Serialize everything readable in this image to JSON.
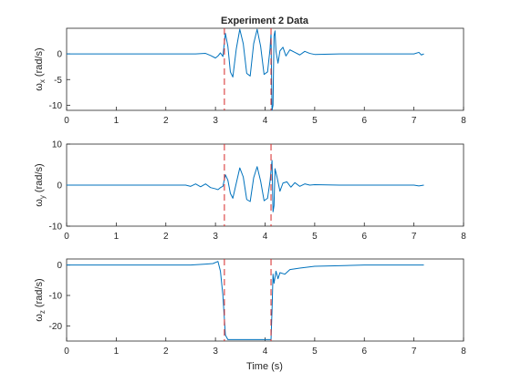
{
  "chart_data": [
    {
      "type": "line",
      "title": "Experiment 2 Data",
      "ylabel": "ω",
      "ylabel_sub": "x",
      "ylabel_unit": "(rad/s)",
      "xlim": [
        0,
        8
      ],
      "ylim": [
        -11,
        5
      ],
      "xticks": [
        0,
        1,
        2,
        3,
        4,
        5,
        6,
        7,
        8
      ],
      "yticks": [
        -10,
        -5,
        0
      ],
      "series": [
        {
          "color": "#0072bd",
          "x": [
            0,
            2.6,
            2.8,
            2.9,
            3.0,
            3.05,
            3.1,
            3.15,
            3.2,
            3.25,
            3.3,
            3.35,
            3.42,
            3.49,
            3.56,
            3.63,
            3.7,
            3.77,
            3.84,
            3.91,
            3.98,
            4.05,
            4.1,
            4.12,
            4.14,
            4.16,
            4.18,
            4.2,
            4.22,
            4.26,
            4.3,
            4.36,
            4.42,
            4.5,
            4.6,
            4.7,
            4.8,
            4.9,
            5.0,
            5.5,
            6.0,
            6.5,
            7.0,
            7.1,
            7.15,
            7.2
          ],
          "y": [
            0,
            0,
            0.1,
            -0.3,
            -0.8,
            -0.4,
            0.2,
            -0.5,
            4.0,
            1.5,
            -3.5,
            -4.5,
            1.0,
            4.8,
            2.0,
            -3.8,
            -4.3,
            2.0,
            4.8,
            1.5,
            -4.0,
            -3.5,
            1.0,
            4.0,
            -11.0,
            -10.0,
            3.5,
            4.5,
            0.5,
            -1.8,
            0.6,
            1.3,
            -0.4,
            0.8,
            0.3,
            -0.2,
            0.5,
            0.1,
            -0.1,
            0,
            0,
            0,
            0,
            0.3,
            -0.2,
            0
          ]
        }
      ],
      "vlines": [
        {
          "x": 3.18,
          "color": "#d62728"
        },
        {
          "x": 4.12,
          "color": "#d62728"
        }
      ]
    },
    {
      "type": "line",
      "ylabel": "ω",
      "ylabel_sub": "y",
      "ylabel_unit": "(rad/s)",
      "xlim": [
        0,
        8
      ],
      "ylim": [
        -10,
        10
      ],
      "xticks": [
        0,
        1,
        2,
        3,
        4,
        5,
        6,
        7,
        8
      ],
      "yticks": [
        -10,
        0,
        10
      ],
      "series": [
        {
          "color": "#0072bd",
          "x": [
            0,
            2.4,
            2.5,
            2.6,
            2.7,
            2.8,
            2.9,
            3.0,
            3.05,
            3.1,
            3.15,
            3.2,
            3.25,
            3.3,
            3.35,
            3.42,
            3.49,
            3.56,
            3.63,
            3.7,
            3.77,
            3.84,
            3.91,
            3.98,
            4.05,
            4.1,
            4.14,
            4.16,
            4.18,
            4.2,
            4.24,
            4.3,
            4.36,
            4.44,
            4.52,
            4.6,
            4.7,
            4.8,
            4.9,
            5.0,
            5.5,
            6.0,
            6.5,
            7.0,
            7.1,
            7.2
          ],
          "y": [
            0,
            0,
            -0.3,
            0.3,
            -0.4,
            0.3,
            -0.6,
            -0.9,
            -1.1,
            -0.6,
            -0.3,
            2.5,
            1.2,
            -2.0,
            -3.2,
            0.5,
            4.2,
            2.0,
            -3.5,
            -4.0,
            1.8,
            4.5,
            1.0,
            -3.8,
            -3.2,
            1.0,
            6.0,
            -6.5,
            -5.0,
            4.0,
            2.0,
            -1.5,
            0.5,
            0.8,
            -0.5,
            0.6,
            -0.3,
            0.3,
            0,
            0.1,
            0,
            0,
            0,
            0,
            -0.2,
            0
          ]
        }
      ],
      "vlines": [
        {
          "x": 3.18,
          "color": "#d62728"
        },
        {
          "x": 4.12,
          "color": "#d62728"
        }
      ]
    },
    {
      "type": "line",
      "xlabel": "Time (s)",
      "ylabel": "ω",
      "ylabel_sub": "z",
      "ylabel_unit": "(rad/s)",
      "xlim": [
        0,
        8
      ],
      "ylim": [
        -25,
        2
      ],
      "xticks": [
        0,
        1,
        2,
        3,
        4,
        5,
        6,
        7,
        8
      ],
      "yticks": [
        -20,
        -10,
        0
      ],
      "series": [
        {
          "color": "#0072bd",
          "x": [
            0,
            2.5,
            2.8,
            2.95,
            3.05,
            3.1,
            3.15,
            3.2,
            3.25,
            3.3,
            3.5,
            3.8,
            4.1,
            4.12,
            4.14,
            4.16,
            4.18,
            4.22,
            4.26,
            4.3,
            4.4,
            4.5,
            4.7,
            5.0,
            5.5,
            6.0,
            7.0,
            7.2
          ],
          "y": [
            0,
            0,
            0.3,
            0.5,
            1.2,
            -2.0,
            -10.0,
            -23.0,
            -24.5,
            -24.5,
            -24.5,
            -24.5,
            -24.5,
            -24.5,
            -15.0,
            -3.0,
            -6.0,
            -2.0,
            -4.5,
            -2.5,
            -3.0,
            -1.5,
            -1.0,
            -0.4,
            -0.2,
            0,
            0,
            0
          ]
        }
      ],
      "vlines": [
        {
          "x": 3.18,
          "color": "#d62728"
        },
        {
          "x": 4.12,
          "color": "#d62728"
        }
      ]
    }
  ]
}
